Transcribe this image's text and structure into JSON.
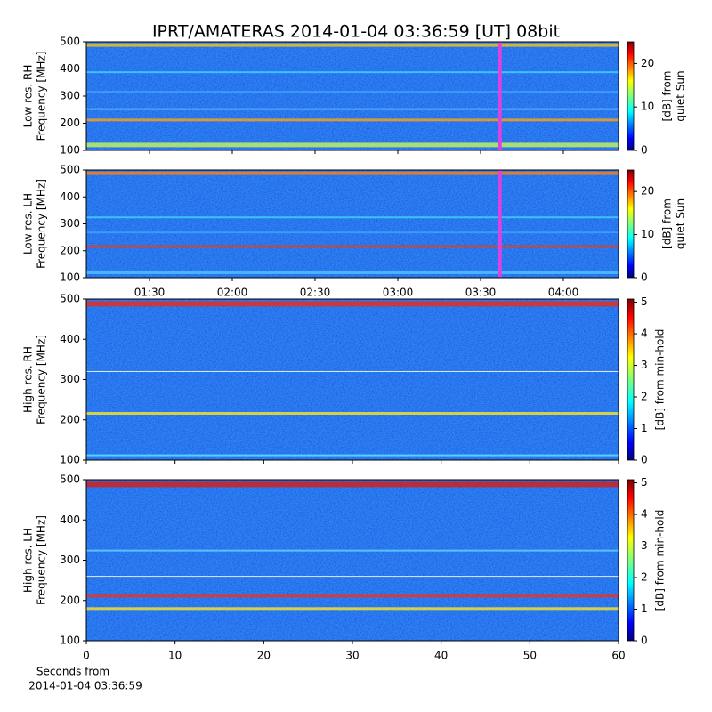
{
  "title": "IPRT/AMATERAS 2014-01-04 03:36:59 [UT]   08bit",
  "x_label": [
    "Seconds from",
    "2014-01-04 03:36:59"
  ],
  "chart_data": [
    {
      "type": "heatmap",
      "ylabel": [
        "Low res. RH",
        "Frequency [MHz]"
      ],
      "xlim": [
        67.1,
        260
      ],
      "xticks": [
        90,
        120,
        150,
        180,
        210,
        240
      ],
      "ylim": [
        100,
        500
      ],
      "yticks": [
        100,
        200,
        300,
        400,
        500
      ],
      "markers": [
        {
          "value": 217,
          "color": "#e040e0"
        }
      ],
      "colorbar": {
        "label": [
          "[dB] from",
          "quiet Sun"
        ],
        "lim": [
          0,
          25
        ],
        "ticks": [
          0,
          10,
          20
        ]
      }
    },
    {
      "type": "heatmap",
      "ylabel": [
        "Low res. LH",
        "Frequency [MHz]"
      ],
      "xlim": [
        67.1,
        260
      ],
      "xticks": [
        {
          "value": 90,
          "label": "01:30"
        },
        {
          "value": 120,
          "label": "02:00"
        },
        {
          "value": 150,
          "label": "02:30"
        },
        {
          "value": 180,
          "label": "03:00"
        },
        {
          "value": 210,
          "label": "03:30"
        },
        {
          "value": 240,
          "label": "04:00"
        }
      ],
      "ylim": [
        100,
        500
      ],
      "yticks": [
        100,
        200,
        300,
        400,
        500
      ],
      "markers": [
        {
          "value": 217,
          "color": "#e040e0"
        }
      ],
      "colorbar": {
        "label": [
          "[dB] from",
          "quiet Sun"
        ],
        "lim": [
          0,
          25
        ],
        "ticks": [
          0,
          10,
          20
        ]
      }
    },
    {
      "type": "heatmap",
      "ylabel": [
        "High res. RH",
        "Frequency [MHz]"
      ],
      "xlim": [
        0,
        60
      ],
      "xticks": [
        0,
        10,
        20,
        30,
        40,
        50,
        60
      ],
      "ylim": [
        100,
        500
      ],
      "yticks": [
        100,
        200,
        300,
        400,
        500
      ],
      "colorbar": {
        "label": [
          "[dB] from min-hold"
        ],
        "lim": [
          0,
          5.1
        ],
        "ticks": [
          0,
          1,
          2,
          3,
          4,
          5
        ]
      }
    },
    {
      "type": "heatmap",
      "ylabel": [
        "High res. LH",
        "Frequency [MHz]"
      ],
      "xlim": [
        0,
        60
      ],
      "xticks": [
        {
          "value": 0,
          "label": "0"
        },
        {
          "value": 10,
          "label": "10"
        },
        {
          "value": 20,
          "label": "20"
        },
        {
          "value": 30,
          "label": "30"
        },
        {
          "value": 40,
          "label": "40"
        },
        {
          "value": 50,
          "label": "50"
        },
        {
          "value": 60,
          "label": "60"
        }
      ],
      "ylim": [
        100,
        500
      ],
      "yticks": [
        100,
        200,
        300,
        400,
        500
      ],
      "colorbar": {
        "label": [
          "[dB] from min-hold"
        ],
        "lim": [
          0,
          5.1
        ],
        "ticks": [
          0,
          1,
          2,
          3,
          4,
          5
        ]
      }
    }
  ]
}
